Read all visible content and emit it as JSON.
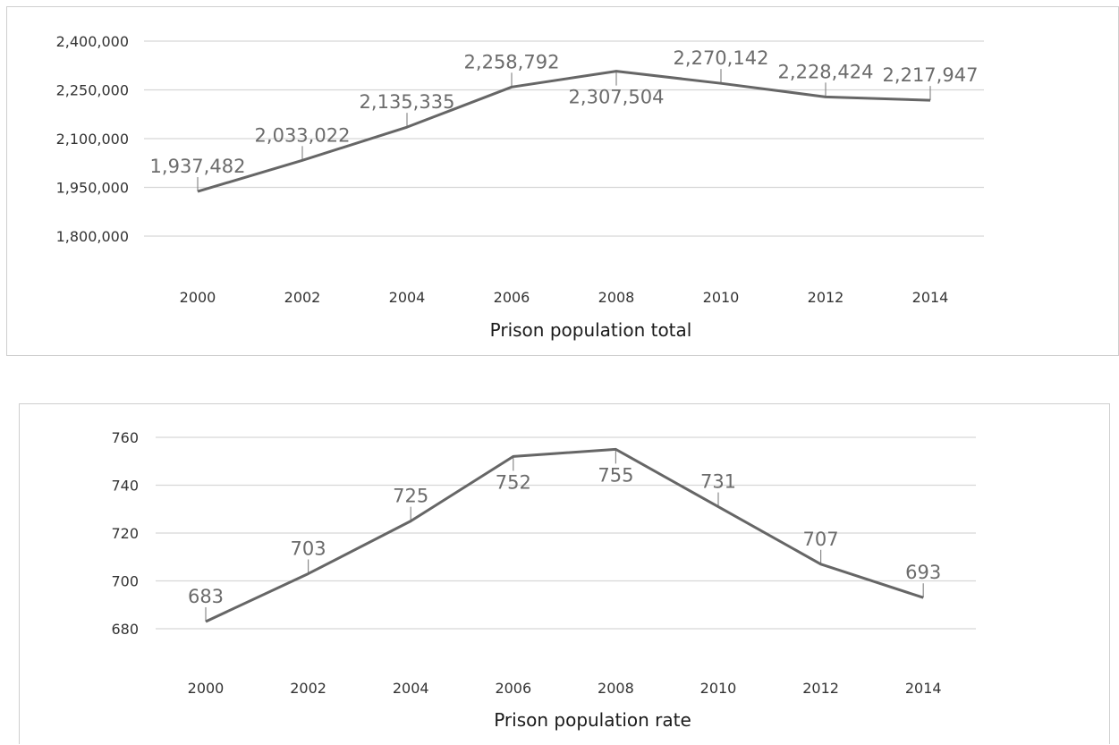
{
  "chart_data": [
    {
      "type": "line",
      "xlabel": "Prison population total",
      "categories": [
        "2000",
        "2002",
        "2004",
        "2006",
        "2008",
        "2010",
        "2012",
        "2014"
      ],
      "values": [
        1937482,
        2033022,
        2135335,
        2258792,
        2307504,
        2270142,
        2228424,
        2217947
      ],
      "data_labels": [
        "1,937,482",
        "2,033,022",
        "2,135,335",
        "2,258,792",
        "2,307,504",
        "2,270,142",
        "2,228,424",
        "2,217,947"
      ],
      "yticks": [
        1800000,
        1950000,
        2100000,
        2250000,
        2400000
      ],
      "ytick_labels": [
        "1,800,000",
        "1,950,000",
        "2,100,000",
        "2,250,000",
        "2,400,000"
      ],
      "ylim": [
        1800000,
        2400000
      ],
      "grid": true,
      "legend": "none",
      "line_color": "#666666"
    },
    {
      "type": "line",
      "xlabel": "Prison population rate",
      "categories": [
        "2000",
        "2002",
        "2004",
        "2006",
        "2008",
        "2010",
        "2012",
        "2014"
      ],
      "values": [
        683,
        703,
        725,
        752,
        755,
        731,
        707,
        693
      ],
      "data_labels": [
        "683",
        "703",
        "725",
        "752",
        "755",
        "731",
        "707",
        "693"
      ],
      "yticks": [
        680,
        700,
        720,
        740,
        760
      ],
      "ytick_labels": [
        "680",
        "700",
        "720",
        "740",
        "760"
      ],
      "ylim": [
        680,
        760
      ],
      "grid": true,
      "legend": "none",
      "line_color": "#666666"
    }
  ]
}
